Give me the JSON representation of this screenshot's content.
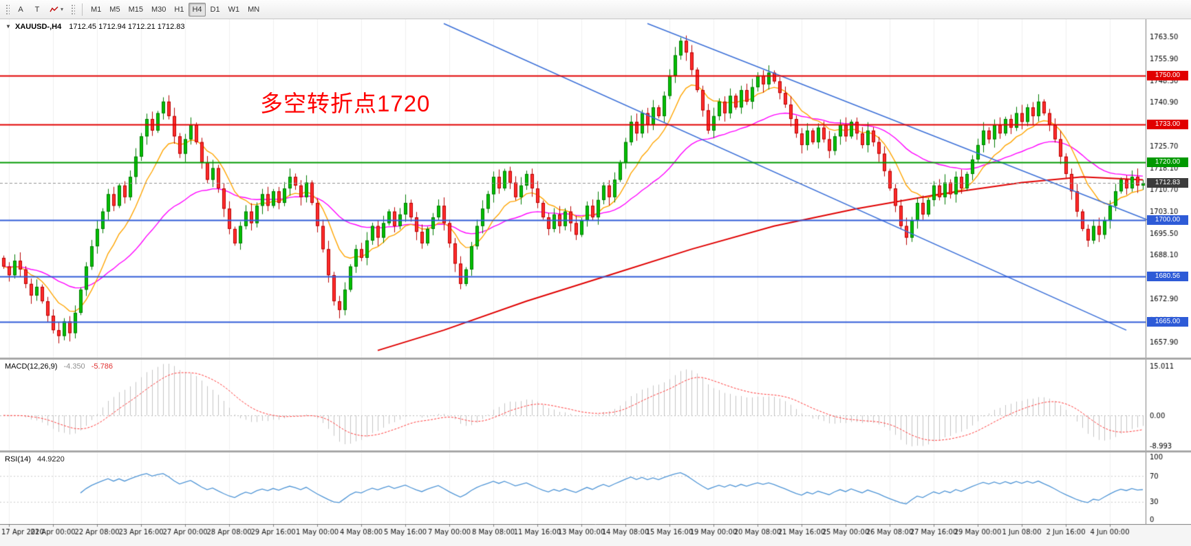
{
  "icons": {
    "dropdown_caret": "▾",
    "marker_down": "▼"
  },
  "toolbar": {
    "tools": {
      "cursor": "A",
      "text": "T"
    },
    "timeframes": [
      "M1",
      "M5",
      "M15",
      "M30",
      "H1",
      "H4",
      "D1",
      "W1",
      "MN"
    ],
    "active_timeframe": "H4"
  },
  "chart_header": {
    "symbol": "XAUUSD-,H4",
    "ohlc": "1712.45 1712.94 1712.21 1712.83"
  },
  "annotation": {
    "text": "多空转折点1720",
    "color": "#FE0000"
  },
  "chart_data": {
    "type": "candlestick",
    "symbol": "XAUUSD",
    "timeframe": "H4",
    "last": {
      "open": 1712.45,
      "high": 1712.94,
      "low": 1712.21,
      "close": 1712.83
    },
    "y_range": [
      1653,
      1769
    ],
    "y_ticks": [
      "1763.50",
      "1755.90",
      "1748.30",
      "1740.90",
      "1733.30",
      "1725.70",
      "1718.10",
      "1710.70",
      "1703.10",
      "1695.50",
      "1688.10",
      "1680.50",
      "1672.90",
      "1665.50",
      "1657.90"
    ],
    "x_labels": [
      "17 Apr 2020",
      "21 Apr 00:00",
      "22 Apr 08:00",
      "23 Apr 16:00",
      "27 Apr 00:00",
      "28 Apr 08:00",
      "29 Apr 16:00",
      "1 May 00:00",
      "4 May 08:00",
      "5 May 16:00",
      "7 May 00:00",
      "8 May 08:00",
      "11 May 16:00",
      "13 May 00:00",
      "14 May 08:00",
      "15 May 16:00",
      "19 May 00:00",
      "20 May 08:00",
      "21 May 16:00",
      "25 May 00:00",
      "26 May 08:00",
      "27 May 16:00",
      "29 May 00:00",
      "1 Jun 08:00",
      "2 Jun 16:00",
      "4 Jun 00:00"
    ],
    "first_label_bar": 1,
    "x_label_every": 8,
    "closes": [
      1684,
      1681,
      1686,
      1683,
      1678,
      1674,
      1677,
      1672,
      1667,
      1662,
      1660,
      1665,
      1661,
      1668,
      1676,
      1684,
      1691,
      1697,
      1703,
      1709,
      1705,
      1712,
      1708,
      1715,
      1722,
      1729,
      1735,
      1731,
      1737,
      1741,
      1736,
      1729,
      1723,
      1728,
      1733,
      1727,
      1720,
      1714,
      1718,
      1711,
      1704,
      1697,
      1692,
      1698,
      1703,
      1699,
      1705,
      1709,
      1705,
      1710,
      1706,
      1711,
      1715,
      1712,
      1708,
      1713,
      1706,
      1698,
      1690,
      1681,
      1672,
      1669,
      1676,
      1684,
      1690,
      1687,
      1693,
      1698,
      1694,
      1699,
      1703,
      1698,
      1702,
      1706,
      1701,
      1696,
      1692,
      1697,
      1701,
      1705,
      1699,
      1692,
      1685,
      1678,
      1683,
      1691,
      1698,
      1704,
      1709,
      1715,
      1711,
      1717,
      1713,
      1708,
      1712,
      1716,
      1711,
      1706,
      1701,
      1697,
      1702,
      1698,
      1703,
      1699,
      1695,
      1700,
      1705,
      1701,
      1707,
      1712,
      1708,
      1714,
      1720,
      1727,
      1734,
      1730,
      1737,
      1733,
      1739,
      1736,
      1743,
      1750,
      1757,
      1762,
      1758,
      1752,
      1745,
      1738,
      1731,
      1736,
      1741,
      1737,
      1743,
      1739,
      1745,
      1741,
      1746,
      1750,
      1747,
      1751,
      1748,
      1744,
      1740,
      1735,
      1730,
      1726,
      1731,
      1727,
      1732,
      1728,
      1724,
      1729,
      1733,
      1729,
      1734,
      1730,
      1726,
      1731,
      1727,
      1723,
      1717,
      1711,
      1705,
      1698,
      1694,
      1700,
      1706,
      1702,
      1707,
      1712,
      1708,
      1713,
      1709,
      1715,
      1711,
      1716,
      1721,
      1726,
      1731,
      1728,
      1733,
      1730,
      1735,
      1732,
      1737,
      1734,
      1739,
      1736,
      1741,
      1737,
      1733,
      1728,
      1722,
      1716,
      1710,
      1703,
      1697,
      1693,
      1698,
      1695,
      1700,
      1705,
      1710,
      1714,
      1711,
      1715,
      1712,
      1712.83
    ],
    "h_lines": [
      {
        "price": 1750.0,
        "label": "1750.00",
        "color": "#E10000",
        "width": 2
      },
      {
        "price": 1733.0,
        "label": "1733.00",
        "color": "#E10000",
        "width": 2
      },
      {
        "price": 1720.0,
        "label": "1720.00",
        "color": "#009900",
        "width": 2
      },
      {
        "price": 1712.83,
        "label": "1712.83",
        "color": "#909090",
        "width": 1,
        "style": "dashed",
        "badge": "#3C3C3C"
      },
      {
        "price": 1700.0,
        "label": "1700.00",
        "color": "#2E5BD7",
        "width": 2
      },
      {
        "price": 1680.56,
        "label": "1680.56",
        "color": "#2E5BD7",
        "width": 2
      },
      {
        "price": 1665.0,
        "label": "1665.00",
        "color": "#2E5BD7",
        "width": 2
      }
    ],
    "trend_lines": [
      {
        "from": [
          80,
          1768
        ],
        "to": [
          204,
          1662
        ],
        "color": "#3A6FD8"
      },
      {
        "from": [
          117,
          1768
        ],
        "to": [
          208,
          1700
        ],
        "color": "#3A6FD8"
      }
    ],
    "ma_red": [
      [
        68,
        1655
      ],
      [
        80,
        1662
      ],
      [
        95,
        1672
      ],
      [
        110,
        1681
      ],
      [
        125,
        1690
      ],
      [
        140,
        1698
      ],
      [
        155,
        1704
      ],
      [
        170,
        1709
      ],
      [
        185,
        1713
      ],
      [
        196,
        1715
      ],
      [
        207,
        1714
      ]
    ],
    "moving_averages": [
      {
        "name": "fast-ma",
        "period": 10,
        "color": "#FFA500"
      },
      {
        "name": "mid-ma",
        "period": 34,
        "color": "#FF00FF"
      },
      {
        "name": "long-ma",
        "color": "#E00000"
      }
    ],
    "macd": {
      "name": "MACD(12,26,9)",
      "value_main": "-4.350",
      "value_signal": "-5.786",
      "axis": [
        "15.011",
        "0.00",
        "-8.993"
      ]
    },
    "rsi": {
      "name": "RSI(14)",
      "value": "44.9220",
      "axis": [
        "100",
        "70",
        "30",
        "0"
      ],
      "levels": [
        70,
        30
      ]
    },
    "colors": {
      "bull": "#00BF00",
      "bull_edge": "#007A00",
      "bear": "#FF2B2B",
      "bear_edge": "#B80000",
      "ma_fast": "#FFA500",
      "ma_mid": "#FF00FF",
      "ma_long": "#E00000",
      "trend": "#3A6FD8",
      "macd_hist": "#C4C4C4",
      "macd_signal": "#FF3B3B",
      "rsi_line": "#4D94D6",
      "grid": "#F0F0F0",
      "axis_border": "#808080"
    }
  }
}
